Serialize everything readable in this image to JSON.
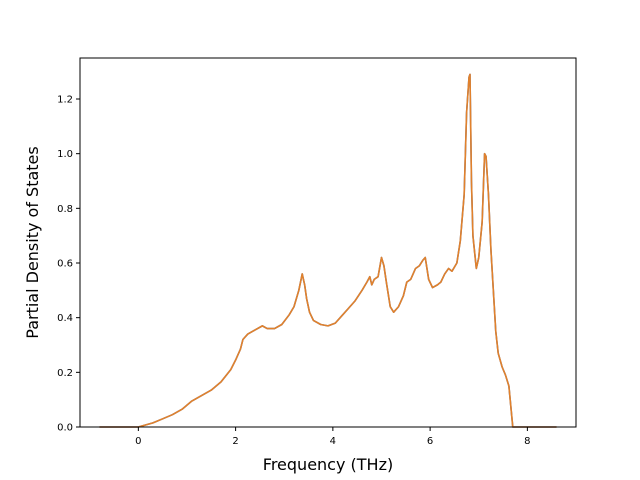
{
  "chart_data": {
    "type": "line",
    "title": "",
    "xlabel": "Frequency (THz)",
    "ylabel": "Partial Density of States",
    "xlim": [
      -1.2,
      9.0
    ],
    "ylim": [
      0.0,
      1.35
    ],
    "x_ticks": [
      0,
      2,
      4,
      6,
      8
    ],
    "x_tick_labels": [
      "0",
      "2",
      "4",
      "6",
      "8"
    ],
    "y_ticks": [
      0.0,
      0.2,
      0.4,
      0.6,
      0.8,
      1.0,
      1.2
    ],
    "y_tick_labels": [
      "0.0",
      "0.2",
      "0.4",
      "0.6",
      "0.8",
      "1.0",
      "1.2"
    ],
    "grid": false,
    "legend": "none",
    "series": [
      {
        "color": "#4c72b0",
        "x": [
          -0.8,
          -0.3,
          0.0,
          0.1,
          0.3,
          0.5,
          0.7,
          0.9,
          1.0,
          1.1,
          1.3,
          1.5,
          1.7,
          1.9,
          2.0,
          2.1,
          2.15,
          2.25,
          2.4,
          2.55,
          2.65,
          2.8,
          2.95,
          3.1,
          3.2,
          3.3,
          3.37,
          3.42,
          3.46,
          3.52,
          3.6,
          3.75,
          3.9,
          4.05,
          4.2,
          4.3,
          4.45,
          4.6,
          4.7,
          4.76,
          4.8,
          4.85,
          4.93,
          5.0,
          5.05,
          5.1,
          5.18,
          5.25,
          5.35,
          5.45,
          5.52,
          5.6,
          5.65,
          5.7,
          5.78,
          5.85,
          5.9,
          5.97,
          6.05,
          6.15,
          6.22,
          6.3,
          6.38,
          6.45,
          6.55,
          6.62,
          6.7,
          6.75,
          6.8,
          6.82,
          6.85,
          6.88,
          6.95,
          7.0,
          7.07,
          7.12,
          7.15,
          7.2,
          7.25,
          7.3,
          7.35,
          7.4,
          7.48,
          7.55,
          7.62,
          7.7,
          7.8,
          7.9,
          8.6
        ],
        "y": [
          0.0,
          0.0,
          0.0,
          0.005,
          0.015,
          0.03,
          0.045,
          0.065,
          0.08,
          0.095,
          0.115,
          0.135,
          0.165,
          0.21,
          0.245,
          0.285,
          0.32,
          0.34,
          0.355,
          0.37,
          0.36,
          0.36,
          0.375,
          0.41,
          0.44,
          0.5,
          0.56,
          0.52,
          0.47,
          0.42,
          0.39,
          0.375,
          0.37,
          0.38,
          0.41,
          0.43,
          0.46,
          0.5,
          0.53,
          0.55,
          0.52,
          0.54,
          0.55,
          0.62,
          0.59,
          0.53,
          0.44,
          0.42,
          0.44,
          0.48,
          0.53,
          0.54,
          0.56,
          0.58,
          0.59,
          0.61,
          0.62,
          0.54,
          0.51,
          0.52,
          0.53,
          0.56,
          0.58,
          0.57,
          0.6,
          0.68,
          0.85,
          1.15,
          1.28,
          1.29,
          0.9,
          0.7,
          0.58,
          0.62,
          0.75,
          1.0,
          0.99,
          0.85,
          0.65,
          0.5,
          0.35,
          0.27,
          0.22,
          0.19,
          0.15,
          0.0,
          0.0,
          0.0,
          0.0
        ]
      },
      {
        "color": "#e1812c",
        "x": [
          -0.8,
          -0.3,
          0.0,
          0.1,
          0.3,
          0.5,
          0.7,
          0.9,
          1.0,
          1.1,
          1.3,
          1.5,
          1.7,
          1.9,
          2.0,
          2.1,
          2.15,
          2.25,
          2.4,
          2.55,
          2.65,
          2.8,
          2.95,
          3.1,
          3.2,
          3.3,
          3.37,
          3.42,
          3.46,
          3.52,
          3.6,
          3.75,
          3.9,
          4.05,
          4.2,
          4.3,
          4.45,
          4.6,
          4.7,
          4.76,
          4.8,
          4.85,
          4.93,
          5.0,
          5.05,
          5.1,
          5.18,
          5.25,
          5.35,
          5.45,
          5.52,
          5.6,
          5.65,
          5.7,
          5.78,
          5.85,
          5.9,
          5.97,
          6.05,
          6.15,
          6.22,
          6.3,
          6.38,
          6.45,
          6.55,
          6.62,
          6.7,
          6.75,
          6.8,
          6.82,
          6.85,
          6.88,
          6.95,
          7.0,
          7.07,
          7.12,
          7.15,
          7.2,
          7.25,
          7.3,
          7.35,
          7.4,
          7.48,
          7.55,
          7.62,
          7.7,
          7.8,
          7.9,
          8.6
        ],
        "y": [
          0.0,
          0.0,
          0.0,
          0.005,
          0.015,
          0.03,
          0.045,
          0.065,
          0.08,
          0.095,
          0.115,
          0.135,
          0.165,
          0.21,
          0.245,
          0.285,
          0.32,
          0.34,
          0.355,
          0.37,
          0.36,
          0.36,
          0.375,
          0.41,
          0.44,
          0.5,
          0.56,
          0.52,
          0.47,
          0.42,
          0.39,
          0.375,
          0.37,
          0.38,
          0.41,
          0.43,
          0.46,
          0.5,
          0.53,
          0.55,
          0.52,
          0.54,
          0.55,
          0.62,
          0.59,
          0.53,
          0.44,
          0.42,
          0.44,
          0.48,
          0.53,
          0.54,
          0.56,
          0.58,
          0.59,
          0.61,
          0.62,
          0.54,
          0.51,
          0.52,
          0.53,
          0.56,
          0.58,
          0.57,
          0.6,
          0.68,
          0.85,
          1.15,
          1.28,
          1.29,
          0.9,
          0.7,
          0.58,
          0.62,
          0.75,
          1.0,
          0.99,
          0.85,
          0.65,
          0.5,
          0.35,
          0.27,
          0.22,
          0.19,
          0.15,
          0.0,
          0.0,
          0.0,
          0.0
        ]
      }
    ]
  }
}
